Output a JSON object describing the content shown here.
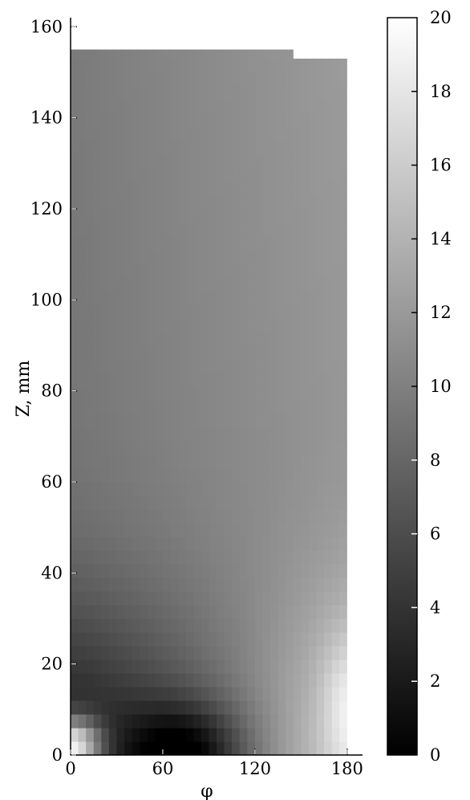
{
  "chart_data": {
    "type": "heatmap",
    "title": "",
    "xlabel": "φ",
    "ylabel": "Z, mm",
    "xlim": [
      0,
      190
    ],
    "ylim": [
      0,
      162
    ],
    "x_ticks": [
      {
        "value": 0,
        "label": "0"
      },
      {
        "value": 60,
        "label": "60"
      },
      {
        "value": 120,
        "label": "120"
      },
      {
        "value": 180,
        "label": "180"
      }
    ],
    "y_ticks": [
      {
        "value": 0,
        "label": "0"
      },
      {
        "value": 20,
        "label": "20"
      },
      {
        "value": 40,
        "label": "40"
      },
      {
        "value": 60,
        "label": "60"
      },
      {
        "value": 80,
        "label": "80"
      },
      {
        "value": 100,
        "label": "100"
      },
      {
        "value": 120,
        "label": "120"
      },
      {
        "value": 140,
        "label": "140"
      },
      {
        "value": 160,
        "label": "160"
      }
    ],
    "colorbar": {
      "min": 0,
      "max": 20,
      "colormap": "grayscale (black to white)",
      "ticks": [
        {
          "value": 0,
          "label": "0"
        },
        {
          "value": 2,
          "label": "2"
        },
        {
          "value": 4,
          "label": "4"
        },
        {
          "value": 6,
          "label": "6"
        },
        {
          "value": 8,
          "label": "8"
        },
        {
          "value": 10,
          "label": "10"
        },
        {
          "value": 12,
          "label": "12"
        },
        {
          "value": 14,
          "label": "14"
        },
        {
          "value": 16,
          "label": "16"
        },
        {
          "value": 18,
          "label": "18"
        },
        {
          "value": 20,
          "label": "20"
        }
      ]
    },
    "data_extent": {
      "phi": [
        0,
        180
      ],
      "z_top_left": 155,
      "z_top_right": 153,
      "z_step_at_phi": 145
    },
    "field_description": "Bright spot (~20) near phi 0-15, Z 0-8; dark region (~1-2) around phi 40-110, Z 0-12; values increase with phi toward ~16-18 near phi 170-180 at low Z; upper region ~9-12 increasing slightly with phi.",
    "grid": false,
    "legend": "colorbar on right"
  }
}
